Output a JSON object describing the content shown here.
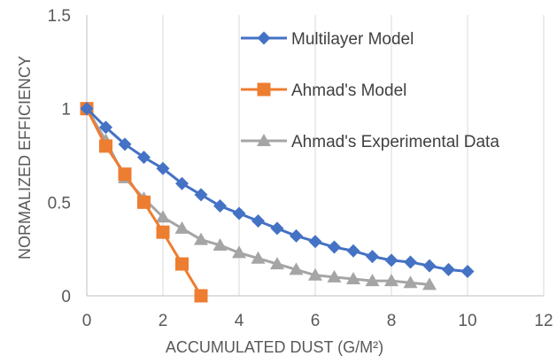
{
  "chart_data": {
    "type": "line",
    "title": "",
    "xlabel": "ACCUMULATED DUST (G/M²)",
    "ylabel": "NORMALIZED EFFICIENCY",
    "xlim": [
      0,
      12
    ],
    "ylim": [
      0,
      1.5
    ],
    "x_ticks": [
      0,
      2,
      4,
      6,
      8,
      10,
      12
    ],
    "x_tick_labels": [
      "0",
      "2",
      "4",
      "6",
      "8",
      "10",
      "12"
    ],
    "y_ticks": [
      0,
      0.5,
      1,
      1.5
    ],
    "y_tick_labels": [
      "0",
      "0.5",
      "1",
      "1.5"
    ],
    "grid": "vertical",
    "legend_position": "top-right",
    "series": [
      {
        "name": "Multilayer Model",
        "color": "#4472c4",
        "marker": "diamond",
        "x": [
          0,
          0.5,
          1,
          1.5,
          2,
          2.5,
          3,
          3.5,
          4,
          4.5,
          5,
          5.5,
          6,
          6.5,
          7,
          7.5,
          8,
          8.5,
          9,
          9.5,
          10
        ],
        "y": [
          1.0,
          0.9,
          0.81,
          0.74,
          0.68,
          0.6,
          0.54,
          0.48,
          0.44,
          0.4,
          0.36,
          0.32,
          0.29,
          0.26,
          0.24,
          0.21,
          0.19,
          0.18,
          0.16,
          0.14,
          0.13
        ]
      },
      {
        "name": "Ahmad's Model",
        "color": "#ed7d31",
        "marker": "square",
        "x": [
          0,
          0.5,
          1,
          1.5,
          2,
          2.5,
          3
        ],
        "y": [
          1.0,
          0.8,
          0.65,
          0.5,
          0.34,
          0.17,
          0.0
        ]
      },
      {
        "name": "Ahmad's Experimental Data",
        "color": "#a5a5a5",
        "marker": "triangle",
        "x": [
          0,
          0.5,
          1,
          1.5,
          2,
          2.5,
          3,
          3.5,
          4,
          4.5,
          5,
          5.5,
          6,
          6.5,
          7,
          7.5,
          8,
          8.5,
          9
        ],
        "y": [
          1.0,
          0.83,
          0.63,
          0.52,
          0.42,
          0.36,
          0.3,
          0.27,
          0.23,
          0.2,
          0.17,
          0.14,
          0.11,
          0.1,
          0.09,
          0.08,
          0.08,
          0.07,
          0.06
        ]
      }
    ]
  }
}
